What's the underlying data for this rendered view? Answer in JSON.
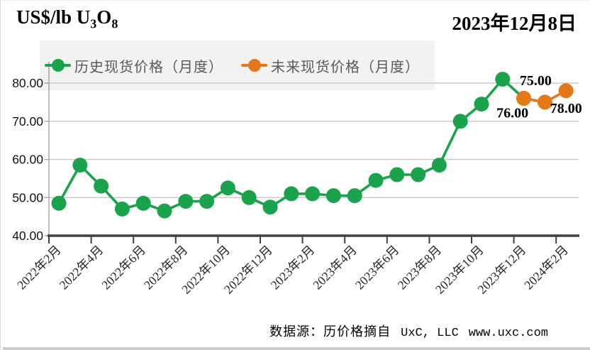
{
  "header": {
    "title_main": "US$/lb U",
    "title_sub1": "3",
    "title_o": "O",
    "title_sub2": "8",
    "date": "2023年12月8日"
  },
  "legend": {
    "historical": {
      "label": "历史现货价格（月度）",
      "color": "#19A44B"
    },
    "future": {
      "label": "未来现货价格（月度）",
      "color": "#E67817"
    }
  },
  "footer": {
    "source_prefix": "数据源：历价格摘自",
    "source_org": "UxC, LLC",
    "source_url": "www.uxc.com"
  },
  "colors": {
    "historical": "#19A44B",
    "future": "#E67817",
    "grid": "#C9C9C9",
    "y_axis": "#A3A3A3",
    "x_axis": "#404040",
    "legend_bg": "#F2F2F2"
  },
  "chart_data": {
    "type": "line",
    "title": "US$/lb U3O8 spot price",
    "xlabel": "",
    "ylabel": "US$/lb U3O8",
    "ylim": [
      40,
      85
    ],
    "grid": "horizontal",
    "legend_position": "top",
    "y_ticks": [
      "40.00",
      "50.00",
      "60.00",
      "70.00",
      "80.00"
    ],
    "y_tick_values": [
      40,
      50,
      60,
      70,
      80
    ],
    "x_tick_labels": [
      "2022年2月",
      "2022年4月",
      "2022年6月",
      "2022年8月",
      "2022年10月",
      "2022年12月",
      "2023年2月",
      "2023年4月",
      "2023年6月",
      "2023年8月",
      "2023年10月",
      "2023年12月",
      "2024年2月"
    ],
    "months_per_point": 1,
    "series": [
      {
        "name": "历史现货价格（月度）",
        "color": "#19A44B",
        "start_index": 0,
        "values": [
          48.5,
          58.5,
          53,
          47,
          48.5,
          46.5,
          49,
          49,
          52.5,
          50,
          47.5,
          51,
          51,
          50.5,
          50.5,
          54.5,
          56,
          56,
          58.5,
          70,
          74.5,
          81,
          76
        ]
      },
      {
        "name": "未来现货价格（月度）",
        "color": "#E67817",
        "start_index": 22,
        "values": [
          76,
          75,
          78
        ]
      }
    ],
    "point_labels": [
      {
        "text": "76.00",
        "series": 1,
        "index": 0,
        "position": "below-left"
      },
      {
        "text": "75.00",
        "series": 1,
        "index": 1,
        "position": "above-left"
      },
      {
        "text": "78.00",
        "series": 1,
        "index": 2,
        "position": "below"
      }
    ]
  }
}
